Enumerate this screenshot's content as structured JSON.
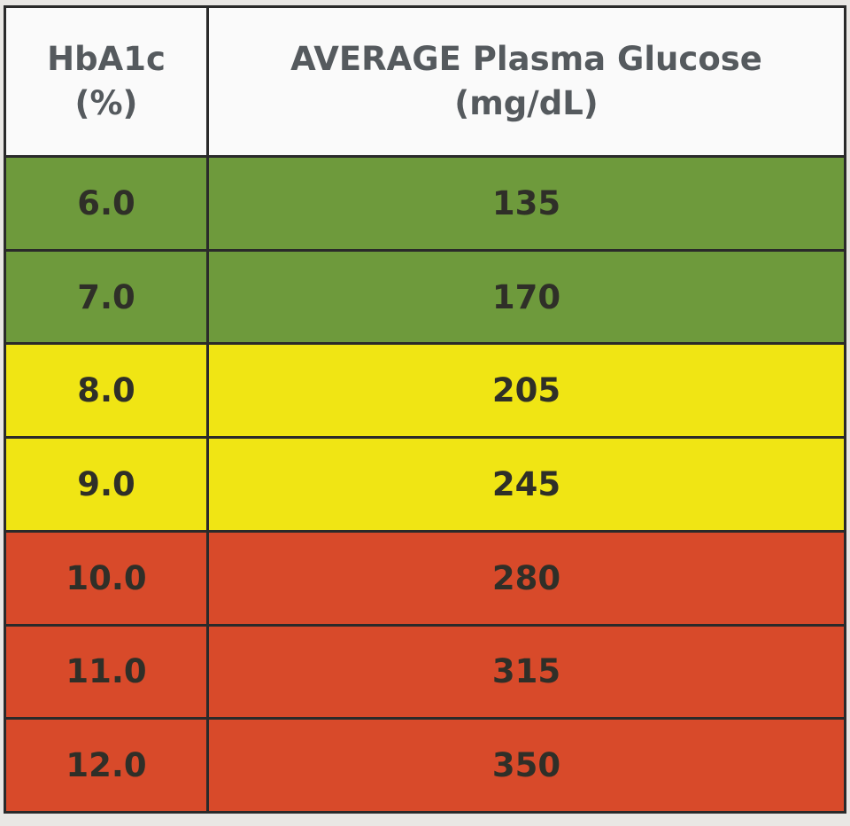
{
  "table": {
    "headers": [
      {
        "line1": "HbA1c",
        "line2": "(%)"
      },
      {
        "line1": "AVERAGE Plasma Glucose",
        "line2": "(mg/dL)"
      }
    ],
    "rows": [
      {
        "hba1c": "6.0",
        "glucose": "135",
        "band": "green"
      },
      {
        "hba1c": "7.0",
        "glucose": "170",
        "band": "green"
      },
      {
        "hba1c": "8.0",
        "glucose": "205",
        "band": "yellow"
      },
      {
        "hba1c": "9.0",
        "glucose": "245",
        "band": "yellow"
      },
      {
        "hba1c": "10.0",
        "glucose": "280",
        "band": "red"
      },
      {
        "hba1c": "11.0",
        "glucose": "315",
        "band": "red"
      },
      {
        "hba1c": "12.0",
        "glucose": "350",
        "band": "red"
      }
    ],
    "colors": {
      "green": "#6e9a3c",
      "yellow": "#f0e514",
      "red": "#d84a2a",
      "header": "#fafafa"
    }
  }
}
